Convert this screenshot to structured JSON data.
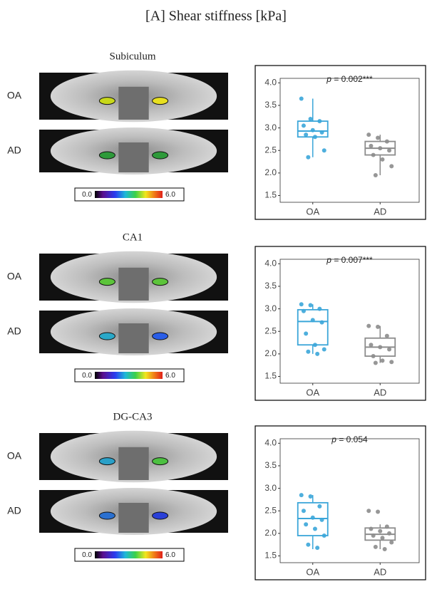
{
  "title": "[A] Shear stiffness [kPa]",
  "panels": [
    {
      "region": "Subiculum",
      "image_labels": [
        "OA",
        "AD"
      ],
      "colorbar_ticks": [
        {
          "value": 0,
          "label": "0.0"
        },
        {
          "value": 6,
          "label": "6.0"
        }
      ]
    },
    {
      "region": "CA1",
      "image_labels": [
        "OA",
        "AD"
      ],
      "colorbar_ticks": [
        {
          "value": 0,
          "label": "0.0"
        },
        {
          "value": 6,
          "label": "6.0"
        }
      ]
    },
    {
      "region": "DG-CA3",
      "image_labels": [
        "OA",
        "AD"
      ],
      "colorbar_ticks": [
        {
          "value": 0,
          "label": "0.0"
        },
        {
          "value": 6,
          "label": "6.0"
        }
      ]
    }
  ],
  "chart_data": [
    {
      "type": "box",
      "annotation": [
        "p",
        " = 0.002***"
      ],
      "categories": [
        "OA",
        "AD"
      ],
      "boxes": [
        {
          "color": "#3ba6d9",
          "min": 2.35,
          "q1": 2.8,
          "median": 2.93,
          "q3": 3.15,
          "max": 3.65,
          "points": [
            3.65,
            3.2,
            3.15,
            3.05,
            2.95,
            2.9,
            2.85,
            2.8,
            2.5,
            2.35
          ]
        },
        {
          "color": "#8c8c8c",
          "min": 1.95,
          "q1": 2.4,
          "median": 2.55,
          "q3": 2.7,
          "max": 2.85,
          "points": [
            2.85,
            2.78,
            2.7,
            2.6,
            2.55,
            2.5,
            2.4,
            2.3,
            2.15,
            1.95
          ]
        }
      ],
      "ylim": [
        1.35,
        4.1
      ],
      "yticks": [
        1.5,
        {
          "value": 2,
          "label": "2.0"
        },
        2.5,
        {
          "value": 3,
          "label": "3.0"
        },
        3.5,
        {
          "value": 4,
          "label": "4.0"
        }
      ],
      "grid": false
    },
    {
      "type": "box",
      "annotation": [
        "p",
        " = 0.007***"
      ],
      "categories": [
        "OA",
        "AD"
      ],
      "boxes": [
        {
          "color": "#3ba6d9",
          "min": 2.0,
          "q1": 2.2,
          "median": 2.72,
          "q3": 2.98,
          "max": 3.1,
          "points": [
            3.1,
            3.08,
            3.0,
            2.95,
            2.75,
            2.7,
            2.45,
            2.2,
            2.1,
            2.05,
            2.0
          ]
        },
        {
          "color": "#8c8c8c",
          "min": 1.8,
          "q1": 1.95,
          "median": 2.15,
          "q3": 2.35,
          "max": 2.62,
          "points": [
            2.62,
            2.6,
            2.4,
            2.2,
            2.15,
            2.1,
            1.95,
            1.85,
            1.82,
            1.8
          ]
        }
      ],
      "ylim": [
        1.35,
        4.1
      ],
      "yticks": [
        1.5,
        {
          "value": 2,
          "label": "2.0"
        },
        2.5,
        {
          "value": 3,
          "label": "3.0"
        },
        3.5,
        {
          "value": 4,
          "label": "4.0"
        }
      ],
      "grid": false
    },
    {
      "type": "box",
      "annotation": [
        "p",
        " = 0.054"
      ],
      "categories": [
        "OA",
        "AD"
      ],
      "boxes": [
        {
          "color": "#3ba6d9",
          "min": 1.65,
          "q1": 1.95,
          "median": 2.33,
          "q3": 2.68,
          "max": 2.85,
          "points": [
            2.85,
            2.82,
            2.6,
            2.5,
            2.35,
            2.3,
            2.2,
            2.1,
            1.95,
            1.75,
            1.68
          ]
        },
        {
          "color": "#8c8c8c",
          "min": 1.65,
          "q1": 1.85,
          "median": 1.98,
          "q3": 2.12,
          "max": 2.2,
          "points": [
            2.5,
            2.48,
            2.15,
            2.1,
            2.05,
            2.0,
            1.95,
            1.9,
            1.8,
            1.7,
            1.65
          ]
        }
      ],
      "ylim": [
        1.35,
        4.1
      ],
      "yticks": [
        1.5,
        {
          "value": 2,
          "label": "2.0"
        },
        2.5,
        {
          "value": 3,
          "label": "3.0"
        },
        3.5,
        {
          "value": 4,
          "label": "4.0"
        }
      ],
      "grid": false
    }
  ]
}
